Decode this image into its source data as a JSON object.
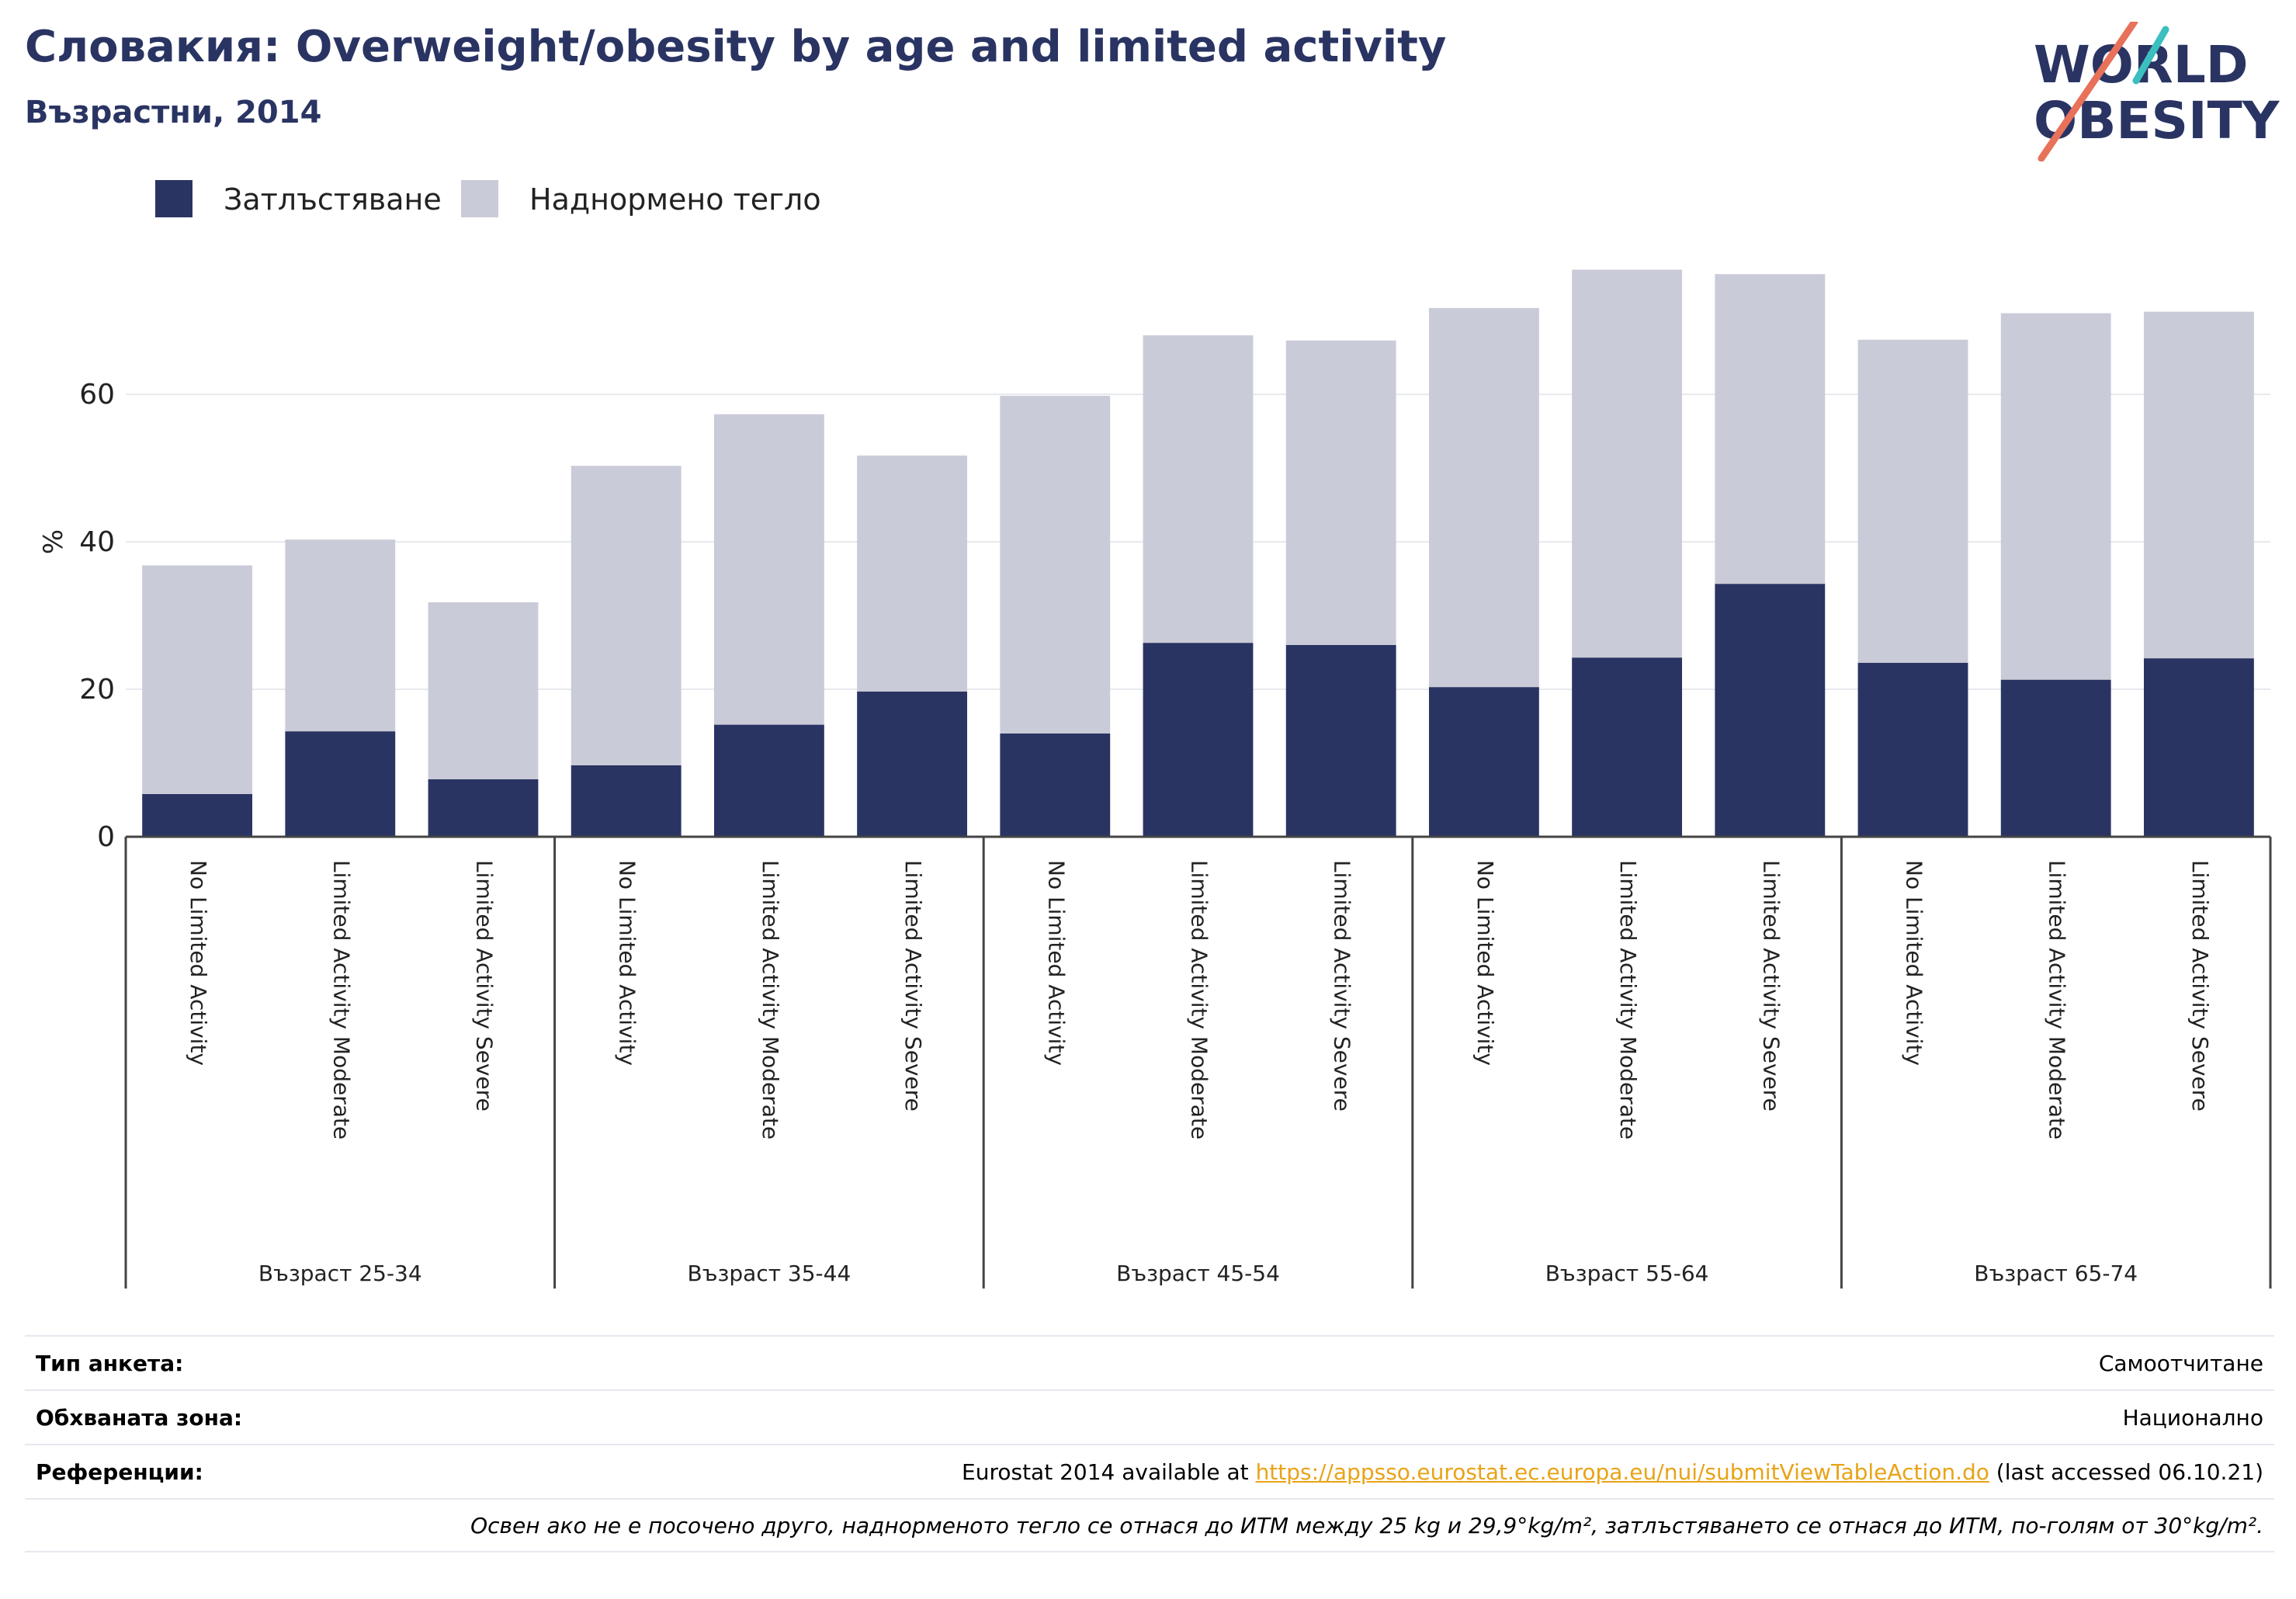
{
  "header": {
    "title": "Словакия: Overweight/obesity by age and limited activity",
    "subtitle": "Възрастни, 2014"
  },
  "logo": {
    "line1": "WORLD",
    "line2": "OBESITY"
  },
  "colors": {
    "obesity": "#2a3463",
    "overweight": "#cacbd8",
    "title": "#2a3463",
    "link": "#e8a317",
    "logo_teal": "#3bbfbf",
    "logo_coral": "#e8715a"
  },
  "chart_data": {
    "type": "bar",
    "stacked": true,
    "ylabel": "%",
    "ylim": [
      0,
      80
    ],
    "yticks": [
      0,
      20,
      40,
      60
    ],
    "grid": true,
    "legend_position": "top-left",
    "groups": [
      {
        "label": "Възраст 25-34",
        "categories": [
          "No Limited Activity",
          "Limited Activity Moderate",
          "Limited Activity Severe"
        ]
      },
      {
        "label": "Възраст 35-44",
        "categories": [
          "No Limited Activity",
          "Limited Activity Moderate",
          "Limited Activity Severe"
        ]
      },
      {
        "label": "Възраст 45-54",
        "categories": [
          "No Limited Activity",
          "Limited Activity Moderate",
          "Limited Activity Severe"
        ]
      },
      {
        "label": "Възраст 55-64",
        "categories": [
          "No Limited Activity",
          "Limited Activity Moderate",
          "Limited Activity Severe"
        ]
      },
      {
        "label": "Възраст 65-74",
        "categories": [
          "No Limited Activity",
          "Limited Activity Moderate",
          "Limited Activity Severe"
        ]
      }
    ],
    "series": [
      {
        "name": "Затлъстяване",
        "color": "#2a3463",
        "values": [
          5.8,
          14.3,
          7.8,
          9.7,
          15.2,
          19.7,
          14.0,
          26.3,
          26.0,
          20.3,
          24.3,
          34.3,
          23.6,
          21.3,
          24.2
        ]
      },
      {
        "name": "Наднормено тегло",
        "color": "#cacbd8",
        "values": [
          31.0,
          26.0,
          24.0,
          40.6,
          42.1,
          32.0,
          45.8,
          41.7,
          41.3,
          51.4,
          52.6,
          42.0,
          43.8,
          49.7,
          47.0
        ]
      }
    ]
  },
  "meta": {
    "survey_label": "Тип анкета:",
    "survey_value": "Самоотчитане",
    "coverage_label": "Обхваната зона:",
    "coverage_value": "Национално",
    "refs_label": "Референции:",
    "refs_prefix": "Eurostat 2014 available at ",
    "refs_link": "https://appsso.eurostat.ec.europa.eu/nui/submitViewTableAction.do",
    "refs_suffix": " (last accessed 06.10.21)",
    "note": "Освен ако не е посочено друго, наднорменото тегло се отнася до ИТМ между 25 kg и 29,9°kg/m², затлъстяването се отнася до ИТМ, по-голям от 30°kg/m²."
  }
}
